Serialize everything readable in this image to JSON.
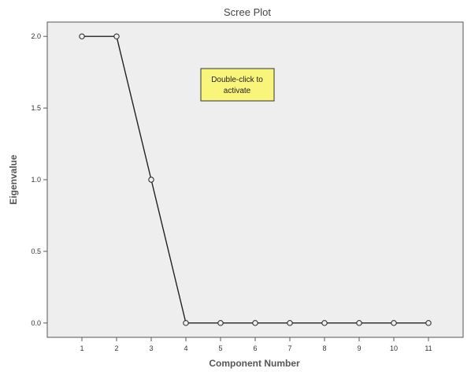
{
  "chart_data": {
    "type": "line",
    "title": "Scree Plot",
    "xlabel": "Component Number",
    "ylabel": "Eigenvalue",
    "x": [
      1,
      2,
      3,
      4,
      5,
      6,
      7,
      8,
      9,
      10,
      11
    ],
    "series": [
      {
        "values": [
          2.0,
          2.0,
          1.0,
          0.0,
          0.0,
          0.0,
          0.0,
          0.0,
          0.0,
          0.0,
          0.0
        ]
      }
    ],
    "xlim": [
      0,
      12
    ],
    "ylim": [
      -0.1,
      2.1
    ],
    "x_ticks": [
      "1",
      "2",
      "3",
      "4",
      "5",
      "6",
      "7",
      "8",
      "9",
      "10",
      "11"
    ],
    "y_ticks": [
      "0.0",
      "0.5",
      "1.0",
      "1.5",
      "2.0"
    ],
    "grid": false,
    "marker": "open-circle",
    "colors": {
      "plot_background": "#eeeeee",
      "line": "#222222",
      "note_background": "#f9f47a"
    }
  },
  "note": {
    "line1": "Double-click to",
    "line2": "activate"
  }
}
